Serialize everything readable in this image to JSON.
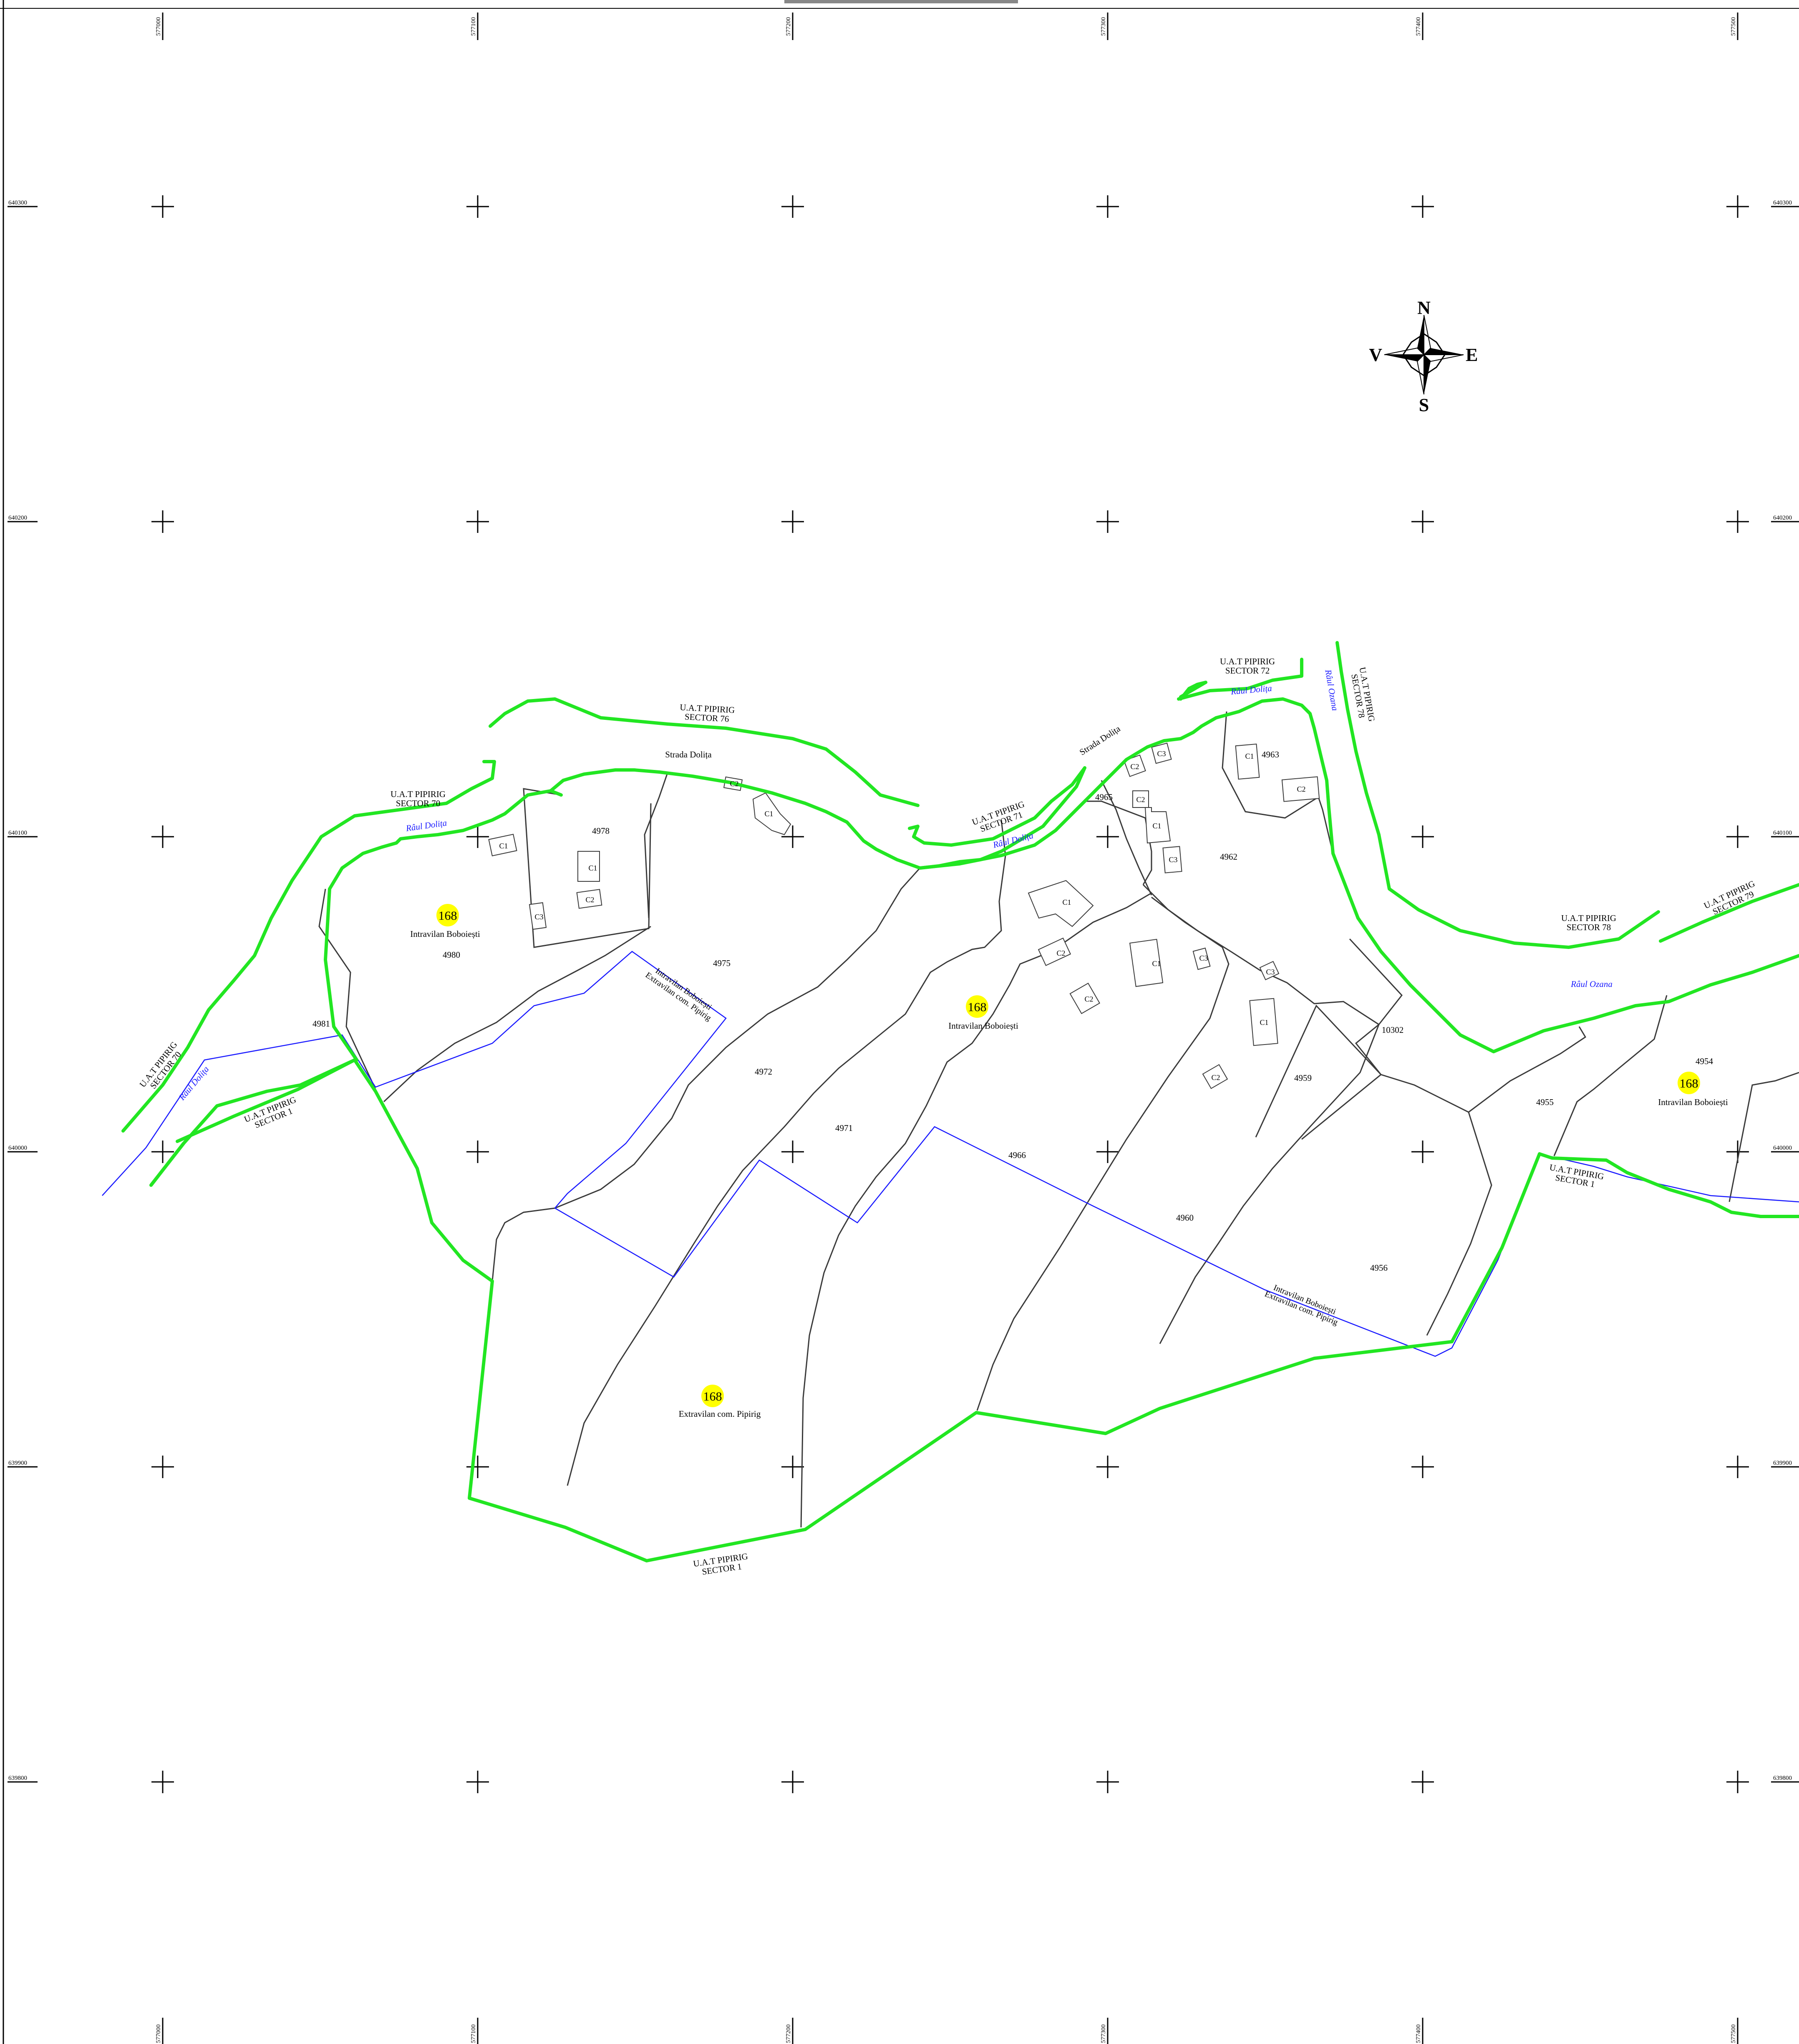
{
  "colors": {
    "uat_boundary": "#22e622",
    "parcel_line": "#3a3a3a",
    "intravilan_line": "#1a1aff",
    "river_label": "#1a1aff",
    "sector_badge": "#ffff00",
    "ink": "#000000"
  },
  "grid": {
    "eastings": [
      "577000",
      "577100",
      "577200",
      "577300",
      "577400",
      "577500"
    ],
    "northings": [
      "640300",
      "640200",
      "640100",
      "640000",
      "639900",
      "639800"
    ]
  },
  "compass": {
    "north": "N",
    "south": "S",
    "east": "E",
    "west": "V"
  },
  "sector_number": "168",
  "zone_labels": {
    "intravilan_boboiesti": "Intravilan Boboiești",
    "extravilan_pipirig": "Extravilan com. Pipirig"
  },
  "boundary_line_label": {
    "line1": "Intravilan Boboiești",
    "line2": "Extravilan com. Pipirig"
  },
  "uat_labels": {
    "sector_70_a": "U.A.T PIPIRIG",
    "sector_70_b": "SECTOR 70",
    "sector_76_a": "U.A.T PIPIRIG",
    "sector_76_b": "SECTOR 76",
    "sector_71_a": "U.A.T PIPIRIG",
    "sector_71_b": "SECTOR 71",
    "sector_72_a": "U.A.T PIPIRIG",
    "sector_72_b": "SECTOR 72",
    "sector_78_v_a": "U.A.T PIPIRIG",
    "sector_78_v_b": "SECTOR 78",
    "sector_78_a": "U.A.T PIPIRIG",
    "sector_78_b": "SECTOR 78",
    "sector_79_a": "U.A.T PIPIRIG",
    "sector_79_b": "SECTOR 79",
    "sector_1_w_a": "U.A.T PIPIRIG",
    "sector_1_w_b": "SECTOR 1",
    "sector_1_s_a": "U.A.T PIPIRIG",
    "sector_1_s_b": "SECTOR 1",
    "sector_1_e_a": "U.A.T PIPIRIG",
    "sector_1_e_b": "SECTOR 1",
    "sector_70_sw_a": "U.A.T PIPIRIG",
    "sector_70_sw_b": "SECTOR 70"
  },
  "rivers": {
    "dolita": "Râul Dolița",
    "ozana": "Râul Ozana"
  },
  "streets": {
    "dolita": "Strada Dolița"
  },
  "parcels": {
    "p4978": "4978",
    "p4980": "4980",
    "p4981": "4981",
    "p4975": "4975",
    "p4972": "4972",
    "p4971": "4971",
    "p4966": "4966",
    "p4965": "4965",
    "p4963": "4963",
    "p4962": "4962",
    "p4960": "4960",
    "p4959": "4959",
    "p10302": "10302",
    "p4956": "4956",
    "p4955": "4955",
    "p4954": "4954"
  },
  "buildings": {
    "c1": "C1",
    "c2": "C2",
    "c3": "C3"
  }
}
